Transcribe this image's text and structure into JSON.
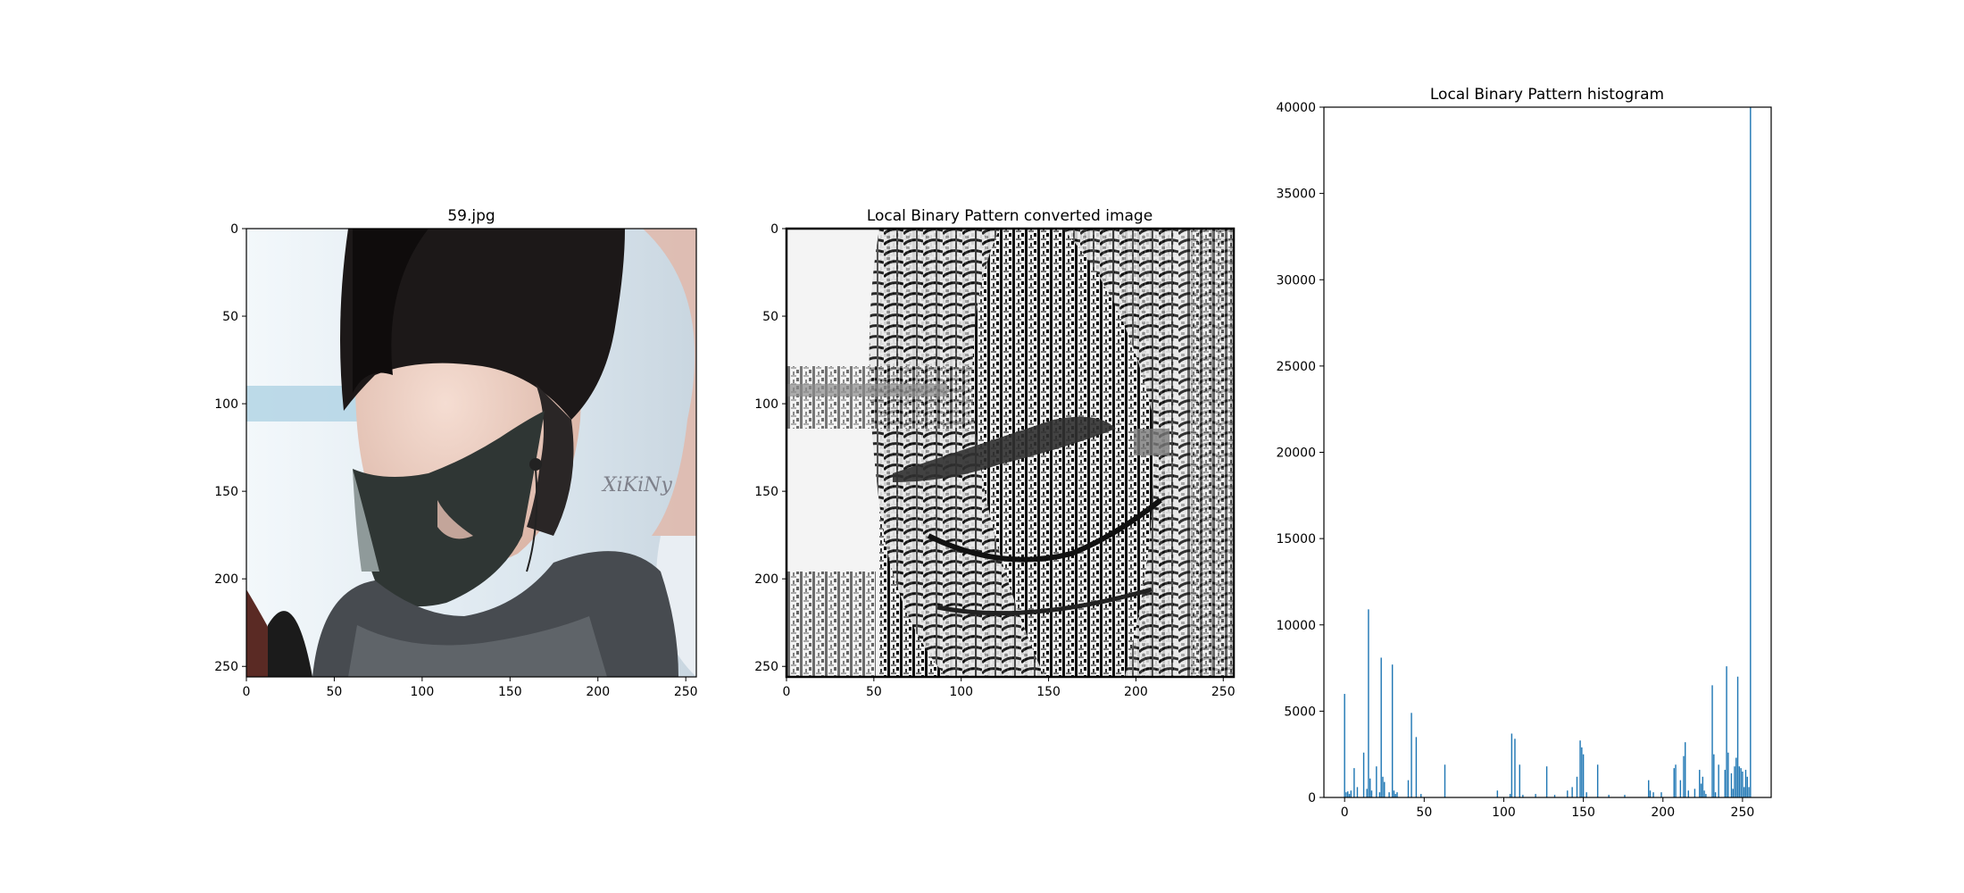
{
  "panels": {
    "photo": {
      "title": "59.jpg",
      "watermark": "XiKiNy"
    },
    "lbp": {
      "title": "Local Binary Pattern converted image"
    },
    "hist": {
      "title": "Local Binary Pattern histogram"
    }
  },
  "image_axes": {
    "xlim": [
      0,
      255
    ],
    "ylim_top_to_bottom": [
      0,
      255
    ],
    "xticks": [
      0,
      50,
      100,
      150,
      200,
      250
    ],
    "yticks": [
      0,
      50,
      100,
      150,
      200,
      250
    ]
  },
  "chart_data": {
    "type": "bar",
    "title": "Local Binary Pattern histogram",
    "xlabel": "",
    "ylabel": "",
    "xlim": [
      -13,
      268
    ],
    "ylim": [
      0,
      40000
    ],
    "xticks": [
      0,
      50,
      100,
      150,
      200,
      250
    ],
    "yticks": [
      0,
      5000,
      10000,
      15000,
      20000,
      25000,
      30000,
      35000,
      40000
    ],
    "color": "#1f77b4",
    "grid": false,
    "x": [
      0,
      1,
      2,
      3,
      4,
      6,
      8,
      12,
      14,
      15,
      16,
      17,
      20,
      22,
      23,
      24,
      25,
      28,
      30,
      31,
      32,
      33,
      40,
      42,
      45,
      48,
      63,
      96,
      104,
      105,
      107,
      110,
      112,
      120,
      127,
      132,
      140,
      143,
      146,
      148,
      149,
      150,
      152,
      159,
      166,
      176,
      191,
      192,
      194,
      199,
      207,
      208,
      211,
      213,
      214,
      216,
      220,
      223,
      224,
      225,
      226,
      227,
      231,
      232,
      233,
      235,
      239,
      240,
      241,
      243,
      244,
      245,
      246,
      247,
      248,
      249,
      250,
      251,
      252,
      253,
      254,
      255
    ],
    "values": [
      6000,
      300,
      350,
      200,
      400,
      1700,
      600,
      2600,
      500,
      10900,
      1100,
      400,
      1800,
      300,
      8100,
      1200,
      900,
      300,
      7700,
      400,
      200,
      300,
      1000,
      4900,
      3500,
      200,
      1900,
      400,
      200,
      3700,
      3400,
      1900,
      150,
      200,
      1800,
      150,
      400,
      600,
      1200,
      3300,
      2900,
      2500,
      300,
      1900,
      150,
      150,
      1000,
      400,
      300,
      300,
      1700,
      1900,
      1000,
      2400,
      3200,
      400,
      500,
      1600,
      800,
      1200,
      400,
      200,
      6500,
      2500,
      300,
      1900,
      1600,
      7600,
      2600,
      1400,
      500,
      1800,
      2300,
      7000,
      1800,
      1700,
      1500,
      600,
      1600,
      1200,
      600,
      40000
    ]
  }
}
